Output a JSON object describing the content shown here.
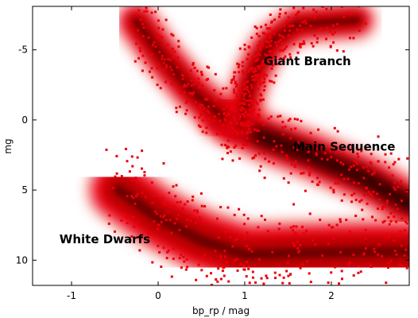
{
  "chart_data": {
    "type": "heatmap",
    "title": "",
    "xlabel": "bp_rp / mag",
    "ylabel": "mg",
    "xlim": [
      -1.45,
      2.9
    ],
    "ylim": [
      11.8,
      -8.1
    ],
    "y_inverted": true,
    "grid": false,
    "legend": "none",
    "x_ticks": [
      {
        "value": -1,
        "label": "-1"
      },
      {
        "value": 0,
        "label": "0"
      },
      {
        "value": 1,
        "label": "1"
      },
      {
        "value": 2,
        "label": "2"
      }
    ],
    "y_ticks": [
      {
        "value": -5,
        "label": "-5"
      },
      {
        "value": 0,
        "label": "0"
      },
      {
        "value": 5,
        "label": "5"
      },
      {
        "value": 10,
        "label": "10"
      }
    ],
    "annotations": [
      {
        "text": "Giant Branch",
        "x": 1.22,
        "y": -4.2
      },
      {
        "text": "Main Sequence",
        "x": 1.56,
        "y": 1.9
      },
      {
        "text": "White Dwarfs",
        "x": -1.14,
        "y": 8.5
      }
    ],
    "colors": {
      "low_density": "#e8000a",
      "mid_density": "#a80000",
      "high_density": "#3a0000"
    },
    "density_regions": [
      {
        "name": "main sequence",
        "path": [
          [
            0.75,
            -0.2
          ],
          [
            1.2,
            1.2
          ],
          [
            1.8,
            2.6
          ],
          [
            2.4,
            4.2
          ],
          [
            2.9,
            6.0
          ]
        ],
        "width_mag": 1.2,
        "density": "high"
      },
      {
        "name": "giant branch",
        "path": [
          [
            0.9,
            0.5
          ],
          [
            1.0,
            -1.0
          ],
          [
            1.05,
            -2.5
          ],
          [
            1.15,
            -4.0
          ],
          [
            1.3,
            -5.5
          ],
          [
            1.6,
            -6.8
          ],
          [
            2.3,
            -7.1
          ]
        ],
        "width_mag": 0.9,
        "density": "mid"
      },
      {
        "name": "upper main sequence",
        "path": [
          [
            -0.25,
            -7.0
          ],
          [
            0.05,
            -4.5
          ],
          [
            0.4,
            -2.0
          ],
          [
            0.75,
            -0.2
          ]
        ],
        "width_mag": 1.0,
        "density": "mid"
      },
      {
        "name": "white dwarfs",
        "path": [
          [
            -0.45,
            5.0
          ],
          [
            0.0,
            7.0
          ],
          [
            0.5,
            8.6
          ],
          [
            1.0,
            9.6
          ],
          [
            1.6,
            9.5
          ],
          [
            2.4,
            9.4
          ],
          [
            2.9,
            9.4
          ]
        ],
        "width_mag": 1.6,
        "density": "mid"
      }
    ]
  }
}
